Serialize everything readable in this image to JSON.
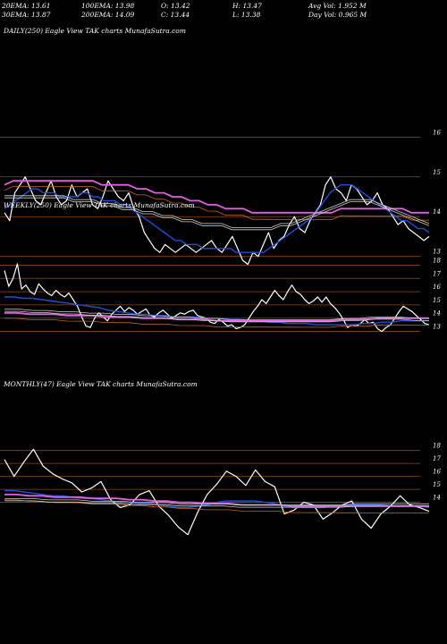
{
  "header": {
    "row1": [
      {
        "label": "20EMA: 13.61"
      },
      {
        "label": "100EMA: 13.98"
      },
      {
        "label": "O: 13.42"
      },
      {
        "label": "H: 13.47"
      },
      {
        "label": "Avg Vol: 1.952  M"
      }
    ],
    "row2": [
      {
        "label": "30EMA: 13.87"
      },
      {
        "label": "200EMA: 14.09"
      },
      {
        "label": "C: 13.44"
      },
      {
        "label": "L: 13.38"
      },
      {
        "label": "Day Vol: 0.965  M"
      }
    ]
  },
  "colors": {
    "price": "#ffffff",
    "ema_fast": "#1f4fd6",
    "ema_slow": "#e060e0",
    "ema_orange": "#c8661c",
    "ema_white": "#cfcfcf",
    "gridline": "#8a4a1e"
  },
  "chart_data": [
    {
      "type": "line",
      "title": "DAILY(250) Eagle  View  TAK charts MunafaSutra.com",
      "yticks": [
        "16",
        "15",
        "14",
        "13"
      ],
      "ylim": [
        12.7,
        16.3
      ],
      "series": [
        {
          "values": [
            14.1,
            13.9,
            14.6,
            14.8,
            15.0,
            14.7,
            14.4,
            14.3,
            14.6,
            14.9,
            14.5,
            14.3,
            14.4,
            14.8,
            14.5,
            14.6,
            14.7,
            14.3,
            14.2,
            14.5,
            14.9,
            14.7,
            14.5,
            14.4,
            14.6,
            14.2,
            14.0,
            13.6,
            13.4,
            13.2,
            13.1,
            13.3,
            13.2,
            13.1,
            13.2,
            13.3,
            13.2,
            13.1,
            13.2,
            13.3,
            13.4,
            13.2,
            13.1,
            13.3,
            13.5,
            13.2,
            12.9,
            12.8,
            13.1,
            13.0,
            13.3,
            13.6,
            13.2,
            13.4,
            13.5,
            13.8,
            14.0,
            13.7,
            13.6,
            13.9,
            14.1,
            14.3,
            14.8,
            15.0,
            14.7,
            14.6,
            14.4,
            14.8,
            14.7,
            14.5,
            14.3,
            14.4,
            14.6,
            14.3,
            14.2,
            14.0,
            13.8,
            13.9,
            13.7,
            13.6,
            13.5,
            13.4,
            13.5
          ]
        },
        {
          "values": [
            14.2,
            14.3,
            14.4,
            14.5,
            14.6,
            14.7,
            14.7,
            14.6,
            14.6,
            14.6,
            14.5,
            14.5,
            14.5,
            14.5,
            14.6,
            14.6,
            14.5,
            14.5,
            14.4,
            14.4,
            14.4,
            14.3,
            14.3,
            14.2,
            14.1,
            14.0,
            13.9,
            13.8,
            13.7,
            13.6,
            13.5,
            13.4,
            13.4,
            13.3,
            13.3,
            13.3,
            13.2,
            13.2,
            13.2,
            13.2,
            13.2,
            13.2,
            13.1,
            13.1,
            13.1,
            13.1,
            13.1,
            13.1,
            13.2,
            13.3,
            13.4,
            13.5,
            13.6,
            13.7,
            13.8,
            13.9,
            14.0,
            14.2,
            14.4,
            14.6,
            14.7,
            14.8,
            14.8,
            14.8,
            14.7,
            14.6,
            14.5,
            14.4,
            14.3,
            14.2,
            14.1,
            14.0,
            13.9,
            13.9,
            13.8,
            13.7,
            13.7,
            13.6
          ]
        },
        {
          "values": [
            14.8,
            14.9,
            14.9,
            14.9,
            14.9,
            14.9,
            14.9,
            14.9,
            14.9,
            14.9,
            14.9,
            14.8,
            14.8,
            14.8,
            14.8,
            14.7,
            14.7,
            14.6,
            14.6,
            14.5,
            14.5,
            14.4,
            14.4,
            14.3,
            14.3,
            14.2,
            14.2,
            14.2,
            14.1,
            14.1,
            14.1,
            14.1,
            14.1,
            14.1,
            14.1,
            14.1,
            14.1,
            14.1,
            14.2,
            14.2,
            14.2,
            14.2,
            14.2,
            14.2,
            14.2,
            14.2,
            14.1,
            14.1,
            14.1
          ]
        },
        {
          "values": [
            14.5,
            14.5,
            14.5,
            14.5,
            14.5,
            14.5,
            14.5,
            14.4,
            14.4,
            14.4,
            14.3,
            14.3,
            14.2,
            14.2,
            14.1,
            14.1,
            14.0,
            14.0,
            13.9,
            13.9,
            13.8,
            13.8,
            13.8,
            13.7,
            13.7,
            13.7,
            13.7,
            13.7,
            13.8,
            13.8,
            13.9,
            14.0,
            14.1,
            14.2,
            14.3,
            14.4,
            14.4,
            14.4,
            14.3,
            14.2,
            14.1,
            14.0,
            13.9,
            13.8
          ]
        }
      ]
    },
    {
      "type": "line",
      "title": "WEEKLY(250) Eagle  View  TAK charts MunafaSutra.com",
      "yticks": [
        "18",
        "17",
        "16",
        "15",
        "14",
        "13"
      ],
      "ylim": [
        12.7,
        18.3
      ],
      "series": [
        {
          "values": [
            17.6,
            16.4,
            17.0,
            18.1,
            16.2,
            16.5,
            16.0,
            15.8,
            16.6,
            16.2,
            15.9,
            15.7,
            16.1,
            15.8,
            15.6,
            15.9,
            15.4,
            14.9,
            14.1,
            13.4,
            13.3,
            14.0,
            14.4,
            14.1,
            13.8,
            14.3,
            14.6,
            14.9,
            14.5,
            14.8,
            14.6,
            14.3,
            14.5,
            14.7,
            14.2,
            14.1,
            14.4,
            14.6,
            14.3,
            14.0,
            14.2,
            14.4,
            14.3,
            14.5,
            14.6,
            14.2,
            14.1,
            14.0,
            13.7,
            13.6,
            13.9,
            13.7,
            13.4,
            13.5,
            13.2,
            13.3,
            13.5,
            14.0,
            14.5,
            14.9,
            15.4,
            15.1,
            15.6,
            16.1,
            15.7,
            15.4,
            16.0,
            16.5,
            16.0,
            15.8,
            15.4,
            15.1,
            15.3,
            15.6,
            15.2,
            15.6,
            15.1,
            14.8,
            14.4,
            13.9,
            13.3,
            13.5,
            13.4,
            13.6,
            13.9,
            13.6,
            13.7,
            13.2,
            13.0,
            13.3,
            13.5,
            14.0,
            14.5,
            14.9,
            14.7,
            14.5,
            14.2,
            13.9,
            13.6,
            13.5
          ]
        },
        {
          "values": [
            15.6,
            15.6,
            15.5,
            15.5,
            15.4,
            15.3,
            15.2,
            15.1,
            15.0,
            14.9,
            14.8,
            14.6,
            14.5,
            14.4,
            14.3,
            14.3,
            14.2,
            14.2,
            14.1,
            14.1,
            14.1,
            14.0,
            14.0,
            14.0,
            13.9,
            13.9,
            13.8,
            13.8,
            13.7,
            13.7,
            13.6,
            13.6,
            13.6,
            13.5,
            13.5,
            13.5,
            13.5,
            13.5,
            13.6,
            13.6,
            13.7,
            13.7,
            13.8,
            13.8,
            13.8,
            13.8
          ]
        },
        {
          "values": [
            14.4,
            14.4,
            14.3,
            14.3,
            14.3,
            14.2,
            14.2,
            14.2,
            14.1,
            14.1,
            14.1,
            14.0,
            14.0,
            14.0,
            13.9,
            13.9,
            13.9,
            13.8,
            13.8,
            13.8,
            13.8,
            13.8,
            13.8,
            13.8,
            13.8,
            13.8,
            13.8,
            13.9,
            13.9,
            13.9,
            14.0,
            14.0,
            14.0,
            14.0,
            14.0
          ]
        },
        {
          "values": [
            14.6,
            14.6,
            14.5,
            14.5,
            14.4,
            14.4,
            14.3,
            14.3,
            14.2,
            14.2,
            14.1,
            14.1,
            14.0,
            14.0,
            13.9,
            13.9,
            13.8,
            13.8,
            13.8,
            13.8,
            13.8,
            13.8,
            13.8,
            13.8,
            13.9,
            13.9,
            14.0,
            14.0,
            14.0,
            13.9,
            13.9
          ]
        }
      ]
    },
    {
      "type": "line",
      "title": "MONTHLY(47) Eagle  View  TAK charts MunafaSutra.com",
      "yticks": [
        "18",
        "17",
        "16",
        "15",
        "14"
      ],
      "ylim": [
        11.0,
        18.6
      ],
      "series": [
        {
          "values": [
            17.3,
            16.0,
            17.1,
            18.1,
            16.8,
            16.2,
            15.8,
            15.5,
            14.8,
            15.1,
            15.6,
            14.2,
            13.6,
            13.8,
            14.6,
            14.9,
            13.7,
            13.0,
            12.1,
            11.5,
            13.2,
            14.6,
            15.4,
            16.4,
            16.0,
            15.3,
            16.5,
            15.6,
            15.2,
            13.1,
            13.4,
            14.0,
            13.8,
            12.7,
            13.2,
            13.8,
            14.1,
            12.7,
            12.0,
            13.1,
            13.7,
            14.5,
            13.8,
            13.6,
            13.3
          ]
        },
        {
          "values": [
            14.9,
            14.9,
            14.8,
            14.7,
            14.6,
            14.5,
            14.5,
            14.4,
            14.3,
            14.3,
            14.2,
            14.1,
            14.0,
            14.0,
            13.9,
            13.9,
            13.8,
            13.7,
            13.6,
            13.6,
            13.7,
            13.8,
            14.0,
            14.1,
            14.1,
            14.1,
            14.1,
            14.0,
            13.9,
            13.7,
            13.6,
            13.6,
            13.6,
            13.6,
            13.7,
            13.7,
            13.8,
            13.8,
            13.8,
            13.8,
            13.7,
            13.7,
            13.7,
            13.7,
            13.6
          ]
        },
        {
          "values": [
            14.6,
            14.6,
            14.5,
            14.5,
            14.4,
            14.4,
            14.4,
            14.3,
            14.3,
            14.3,
            14.2,
            14.2,
            14.1,
            14.1,
            14.0,
            14.0,
            13.9,
            13.9,
            13.9,
            13.8,
            13.8,
            13.8,
            13.8,
            13.7,
            13.7,
            13.7,
            13.7,
            13.7,
            13.7,
            13.7,
            13.7,
            13.7,
            13.7,
            13.7,
            13.7
          ]
        },
        {
          "values": [
            14.2,
            14.2,
            14.2,
            14.1,
            14.1,
            14.1,
            14.0,
            14.0,
            14.0,
            13.9,
            13.9,
            13.9,
            13.8,
            13.8,
            13.8,
            13.8,
            13.7,
            13.7,
            13.7,
            13.7,
            13.7,
            13.7,
            13.7,
            13.7,
            13.8,
            13.8,
            13.8,
            13.8,
            13.8,
            13.8
          ]
        }
      ]
    }
  ]
}
